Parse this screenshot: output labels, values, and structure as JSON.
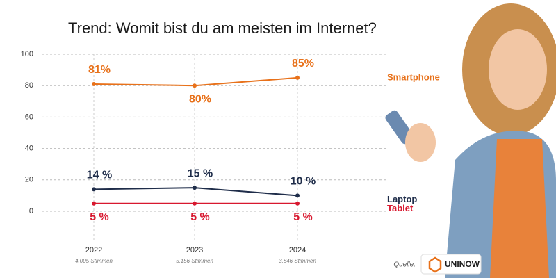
{
  "chart_data": {
    "type": "line",
    "title": "Trend: Womit bist du am meisten im Internet?",
    "categories": [
      "2022",
      "2023",
      "2024"
    ],
    "category_notes": [
      "4.005 Stimmen",
      "5.156 Stimmen",
      "3.846 Stimmen"
    ],
    "series": [
      {
        "name": "Smartphone",
        "color": "#e8711a",
        "values": [
          81,
          80,
          85
        ],
        "value_labels": [
          "81%",
          "80%",
          "85%"
        ]
      },
      {
        "name": "Laptop",
        "color": "#1f2d4a",
        "values": [
          14,
          15,
          10
        ],
        "value_labels": [
          "14 %",
          "15 %",
          "10 %"
        ]
      },
      {
        "name": "Tablet",
        "color": "#d8182f",
        "values": [
          5,
          5,
          5
        ],
        "value_labels": [
          "5 %",
          "5 %",
          "5 %"
        ]
      }
    ],
    "ylim": [
      0,
      100
    ],
    "yticks": [
      0,
      20,
      40,
      60,
      80,
      100
    ],
    "grid": true,
    "source": "Quelle:",
    "brand": "UNINOW"
  }
}
